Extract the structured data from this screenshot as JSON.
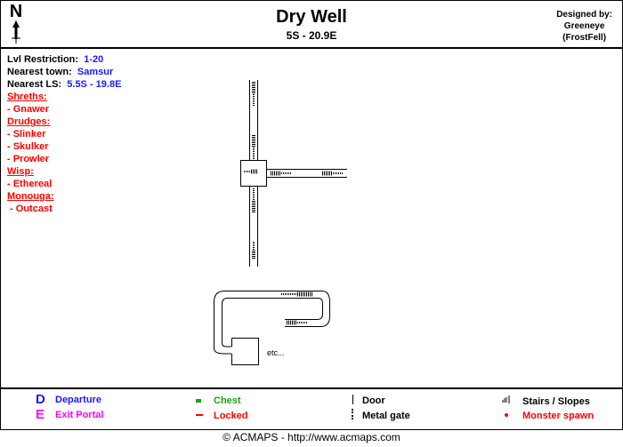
{
  "header": {
    "title": "Dry Well",
    "coordinates": "5S - 20.9E",
    "compass": "N",
    "designer_line1": "Designed by:",
    "designer_line2": "Greeneye",
    "designer_line3": "(FrostFell)"
  },
  "info": {
    "lvl_label": "Lvl Restriction:",
    "lvl_value": "1-20",
    "town_label": "Nearest town:",
    "town_value": "Samsur",
    "ls_label": "Nearest LS:",
    "ls_value": "5.5S - 19.8E",
    "monsters": [
      {
        "group": "Shreths:",
        "members": [
          "- Gnawer"
        ]
      },
      {
        "group": "Drudges:",
        "members": [
          "- Slinker",
          "- Skulker",
          "- Prowler"
        ]
      },
      {
        "group": "Wisp:",
        "members": [
          "- Ethereal"
        ]
      },
      {
        "group": "Monouga:",
        "members": [
          " - Outcast"
        ]
      }
    ]
  },
  "map": {
    "etc_label": "etc..."
  },
  "legend": {
    "departure_glyph": "D",
    "departure": "Departure",
    "exit_glyph": "E",
    "exit": "Exit Portal",
    "chest": "Chest",
    "locked": "Locked",
    "door": "Door",
    "metal_gate": "Metal gate",
    "stairs": "Stairs / Slopes",
    "spawn": "Monster spawn"
  },
  "colors": {
    "blue": "#1a1aff",
    "magenta": "#ff00ff",
    "green": "#1a9e1a",
    "red": "#ff0000"
  },
  "footer": "© ACMAPS - http://www.acmaps.com"
}
